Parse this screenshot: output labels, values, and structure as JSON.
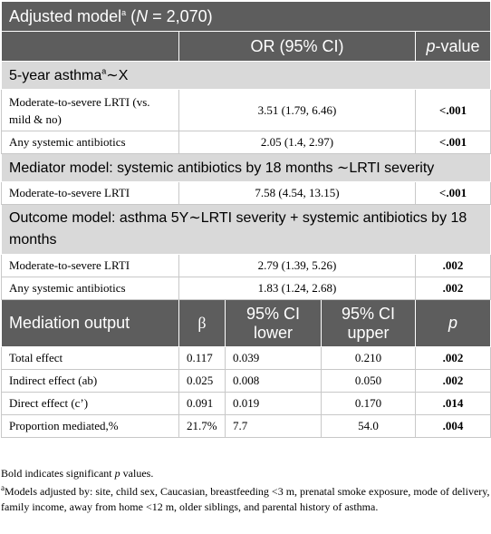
{
  "header": {
    "title": "Adjusted model",
    "title_sup": "a",
    "n_open": " (",
    "n_italic": "N",
    "n_close": " = 2,070)",
    "col_or": "OR (95% CI)",
    "col_p_italic": "p",
    "col_p_rest": "-value"
  },
  "section1": {
    "title": "5-year asthma",
    "sup": "a",
    "title_tail": "∼X",
    "rows": [
      {
        "label": "Moderate-to-severe LRTI (vs. mild & no)",
        "or": "3.51 (1.79, 6.46)",
        "p": "<.001"
      },
      {
        "label": "Any systemic antibiotics",
        "or": "2.05 (1.4, 2.97)",
        "p": "<.001"
      }
    ]
  },
  "section2": {
    "title": "Mediator model: systemic antibiotics by 18 months ∼LRTI severity",
    "rows": [
      {
        "label": "Moderate-to-severe LRTI",
        "or": "7.58 (4.54, 13.15)",
        "p": "<.001"
      }
    ]
  },
  "section3": {
    "title": "Outcome model: asthma 5Y∼LRTI severity + systemic antibiotics by 18 months",
    "rows": [
      {
        "label": "Moderate-to-severe LRTI",
        "or": "2.79 (1.39, 5.26)",
        "p": ".002"
      },
      {
        "label": "Any systemic antibiotics",
        "or": "1.83 (1.24, 2.68)",
        "p": ".002"
      }
    ]
  },
  "mediation": {
    "headers": [
      "Mediation output",
      "β",
      "95% CI lower",
      "95% CI upper",
      "p"
    ],
    "rows": [
      {
        "label": "Total effect",
        "beta": "0.117",
        "lower": "0.039",
        "upper": "0.210",
        "p": ".002"
      },
      {
        "label": "Indirect effect (ab)",
        "beta": "0.025",
        "lower": "0.008",
        "upper": "0.050",
        "p": ".002"
      },
      {
        "label": "Direct effect (c’)",
        "beta": "0.091",
        "lower": "0.019",
        "upper": "0.170",
        "p": ".014"
      },
      {
        "label": "Proportion mediated,%",
        "beta": "21.7%",
        "lower": "7.7",
        "upper": "54.0",
        "p": ".004"
      }
    ]
  },
  "footnotes": {
    "bold_note_pre": "Bold indicates significant ",
    "bold_note_p": "p",
    "bold_note_post": " values.",
    "a_sup": "a",
    "a_text": "Models adjusted by: site, child sex, Caucasian, breastfeeding <3 m, prenatal smoke exposure, mode of delivery, family income, away from home <12 m, older siblings, and parental history of asthma."
  },
  "colors": {
    "dark_header": "#5d5d5d",
    "light_header": "#d9d9d9"
  }
}
